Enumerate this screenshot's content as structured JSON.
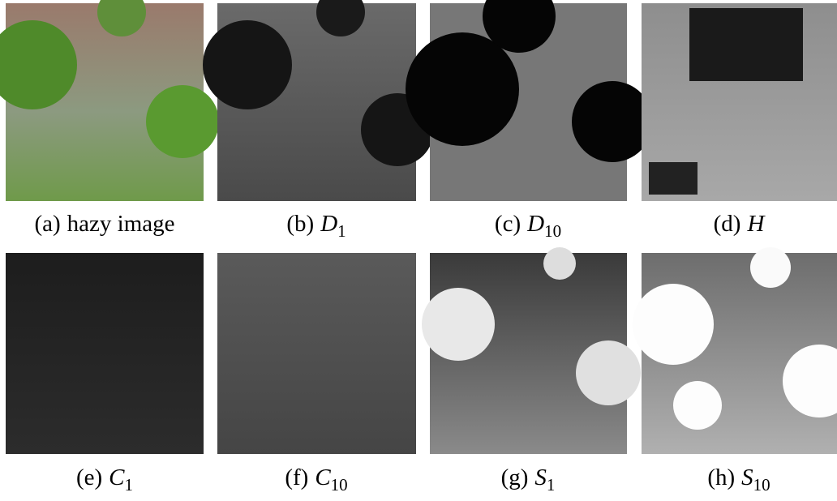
{
  "figure": {
    "panels": [
      {
        "label": "(a)",
        "text": "hazy image"
      },
      {
        "label": "(b)",
        "symbol": "D",
        "subscript": "1"
      },
      {
        "label": "(c)",
        "symbol": "D",
        "subscript": "10"
      },
      {
        "label": "(d)",
        "symbol": "H"
      },
      {
        "label": "(e)",
        "symbol": "C",
        "subscript": "1"
      },
      {
        "label": "(f)",
        "symbol": "C",
        "subscript": "10"
      },
      {
        "label": "(g)",
        "symbol": "S",
        "subscript": "1"
      },
      {
        "label": "(h)",
        "symbol": "S",
        "subscript": "10"
      }
    ]
  }
}
